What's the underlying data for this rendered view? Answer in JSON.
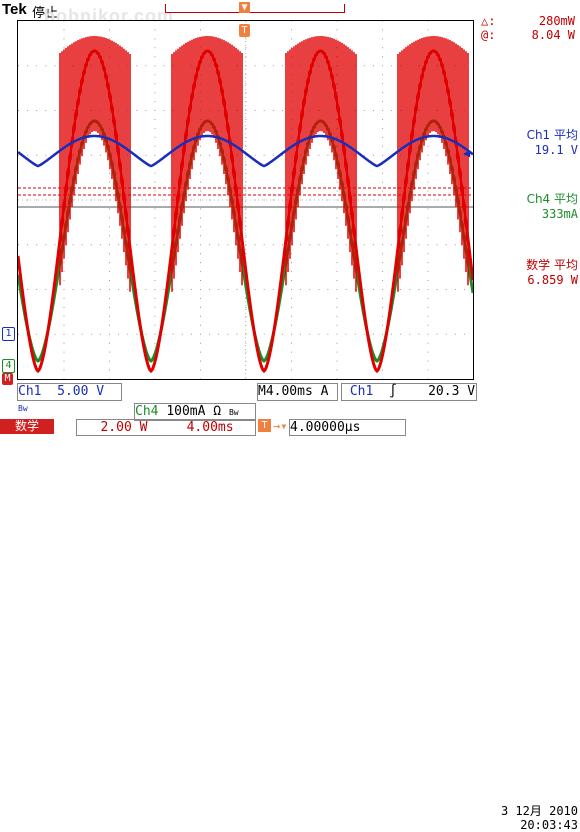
{
  "header": {
    "brand": "Tek",
    "state": "停止",
    "watermark": "bobnikor.com",
    "trigger_marker": "T"
  },
  "cursor": {
    "delta_label": "△:",
    "delta_value": "280mW",
    "at_label": "@:",
    "at_value": "8.04 W"
  },
  "measurements": {
    "ch1": {
      "label": "Ch1 平均",
      "value": "19.1 V"
    },
    "ch4": {
      "label": "Ch4 平均",
      "value": "333mA"
    },
    "math": {
      "label": "数学 平均",
      "value": "6.859 W"
    }
  },
  "markers": {
    "ch1": "1",
    "ch4": "4",
    "math": "M"
  },
  "status": {
    "ch1_name": "Ch1",
    "ch1_scale": "5.00 V",
    "ch1_bw": "Bw",
    "timebase_prefix": "M",
    "timebase": "4.00ms",
    "acq": "A",
    "trig_src": "Ch1",
    "trig_slope": "∫",
    "trig_level": "20.3 V",
    "ch4_name": "Ch4",
    "ch4_scale": "100mA Ω",
    "ch4_bw": "Bw",
    "math_label": "数学",
    "math_scale": "2.00 W",
    "math_time": "4.00ms",
    "hpos_arrow": "→▾",
    "hpos_value": "4.00000µs",
    "date": "3 12月 2010",
    "time": "20:03:43"
  },
  "colors": {
    "ch1": "#1a2dbb",
    "ch4": "#1b8c2a",
    "math": "#e00000",
    "trigger": "#f08040"
  }
}
